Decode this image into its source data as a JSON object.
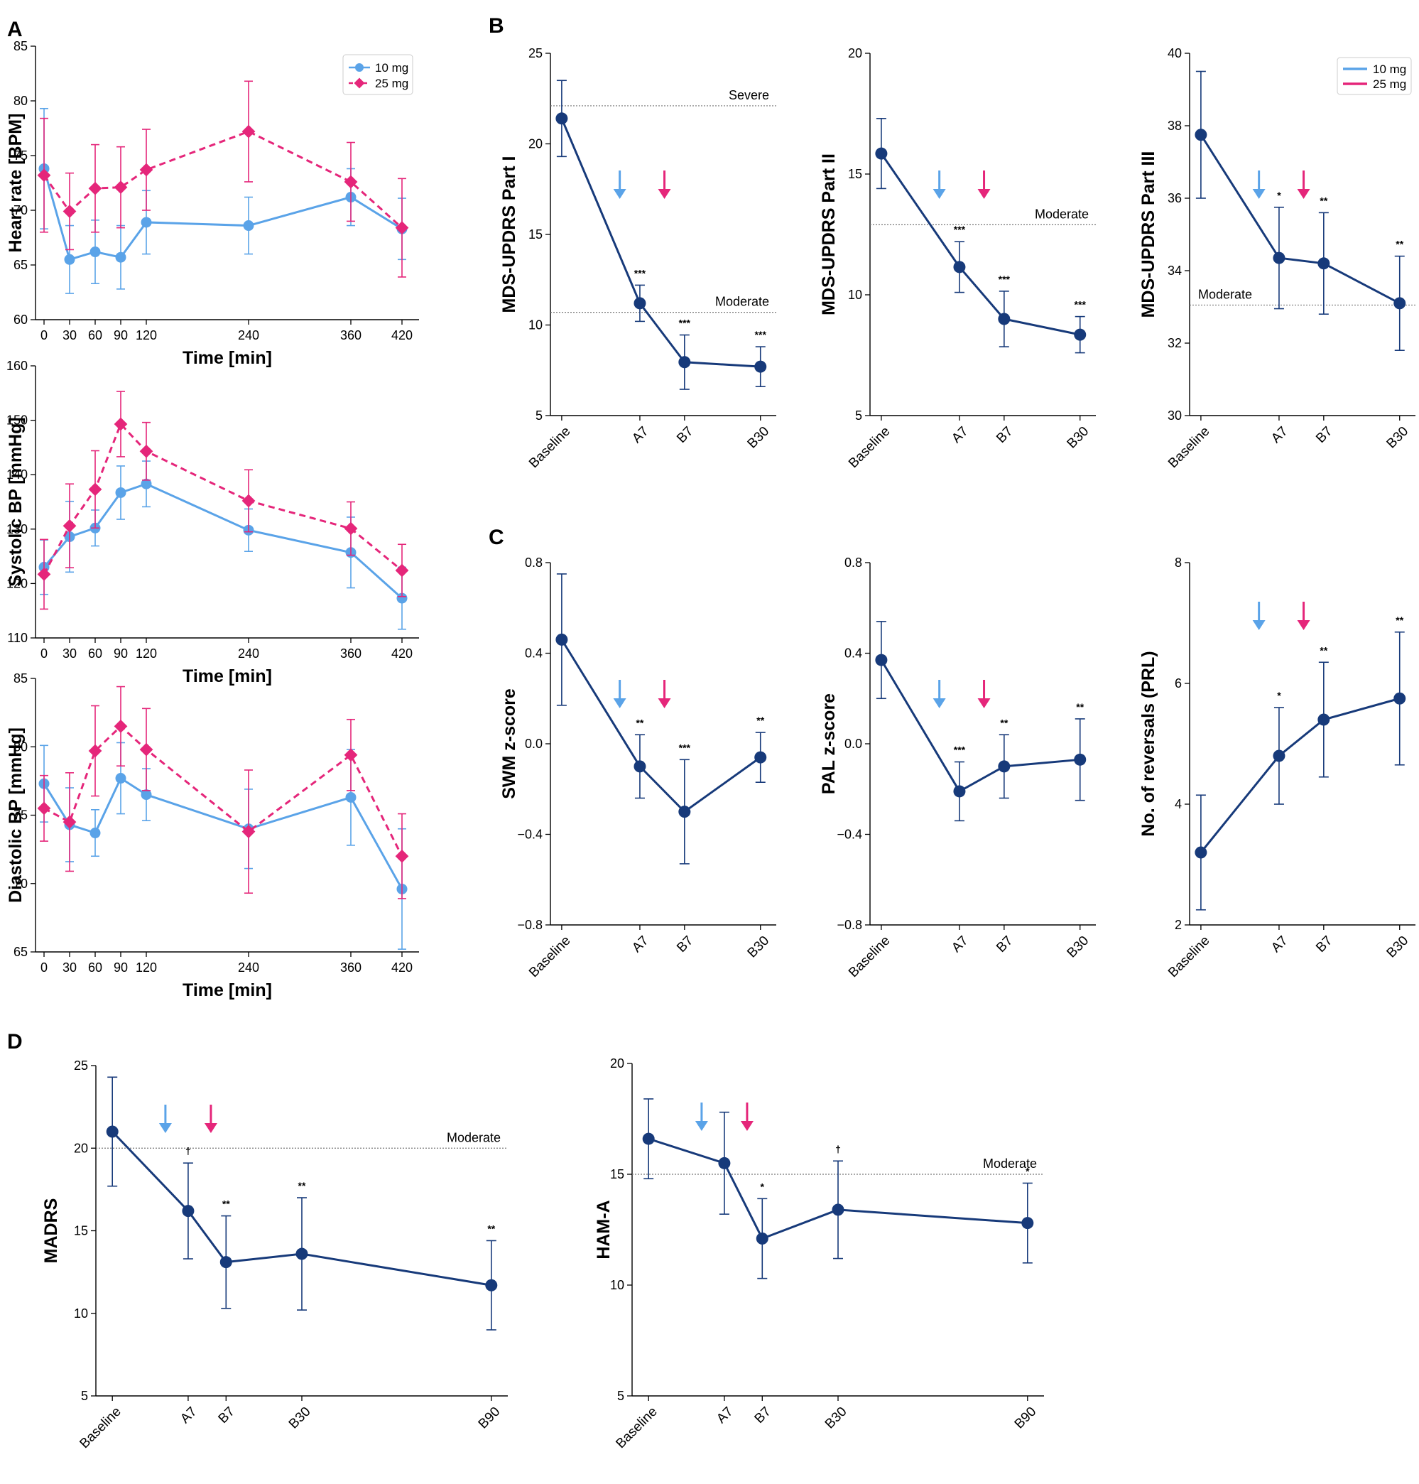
{
  "colors": {
    "navy": "#173a7a",
    "blue10": "#5aa3e8",
    "pink25": "#e5267a",
    "ref_line": "#777777"
  },
  "panel_letters": [
    "A",
    "B",
    "C",
    "D"
  ],
  "chart_data": [
    {
      "id": "hr",
      "panel": "A",
      "type": "line",
      "ylabel": "Heart rate [BPM]",
      "xlabel": "Time [min]",
      "ylim": [
        60,
        85
      ],
      "yticks": [
        60,
        65,
        70,
        75,
        80,
        85
      ],
      "x": [
        0,
        30,
        60,
        90,
        120,
        240,
        360,
        420
      ],
      "xlim": [
        -10,
        440
      ],
      "legend": {
        "position": "top-right",
        "style": "marker"
      },
      "series": [
        {
          "name": "10 mg",
          "color": "#5aa3e8",
          "marker": "circle",
          "dashed": false,
          "values": [
            73.8,
            65.5,
            66.2,
            65.7,
            68.9,
            68.6,
            71.2,
            68.3
          ],
          "errors": [
            5.5,
            3.1,
            2.9,
            2.9,
            2.9,
            2.6,
            2.6,
            2.8
          ]
        },
        {
          "name": "25 mg",
          "color": "#e5267a",
          "marker": "diamond",
          "dashed": true,
          "values": [
            73.2,
            69.9,
            72.0,
            72.1,
            73.7,
            77.2,
            72.6,
            68.4
          ],
          "errors": [
            5.2,
            3.5,
            4.0,
            3.7,
            3.7,
            4.6,
            3.6,
            4.5
          ]
        }
      ]
    },
    {
      "id": "sbp",
      "panel": "",
      "type": "line",
      "ylabel": "Systolic BP [mmHg]",
      "xlabel": "Time [min]",
      "ylim": [
        110,
        160
      ],
      "yticks": [
        110,
        120,
        130,
        140,
        150,
        160
      ],
      "x": [
        0,
        30,
        60,
        90,
        120,
        240,
        360,
        420
      ],
      "xlim": [
        -10,
        440
      ],
      "series": [
        {
          "name": "10 mg",
          "color": "#5aa3e8",
          "marker": "circle",
          "dashed": false,
          "values": [
            123.0,
            128.6,
            130.2,
            136.7,
            138.3,
            129.8,
            125.7,
            117.3
          ],
          "errors": [
            5.0,
            6.5,
            3.3,
            4.9,
            4.2,
            3.9,
            6.5,
            5.7
          ]
        },
        {
          "name": "25 mg",
          "color": "#e5267a",
          "marker": "diamond",
          "dashed": true,
          "values": [
            121.7,
            130.6,
            137.3,
            149.3,
            144.3,
            135.2,
            130.1,
            122.4
          ],
          "errors": [
            6.4,
            7.7,
            7.1,
            6.0,
            5.3,
            5.7,
            4.9,
            4.8
          ]
        }
      ]
    },
    {
      "id": "dbp",
      "panel": "",
      "type": "line",
      "ylabel": "Diastolic BP [mmHg]",
      "xlabel": "Time [min]",
      "ylim": [
        65,
        85
      ],
      "yticks": [
        65,
        70,
        75,
        80,
        85
      ],
      "x": [
        0,
        30,
        60,
        90,
        120,
        240,
        360,
        420
      ],
      "xlim": [
        -10,
        440
      ],
      "series": [
        {
          "name": "10 mg",
          "color": "#5aa3e8",
          "marker": "circle",
          "dashed": false,
          "values": [
            77.3,
            74.3,
            73.7,
            77.7,
            76.5,
            74.0,
            76.3,
            69.6
          ],
          "errors": [
            2.8,
            2.7,
            1.7,
            2.6,
            1.9,
            2.9,
            3.5,
            4.4
          ]
        },
        {
          "name": "25 mg",
          "color": "#e5267a",
          "marker": "diamond",
          "dashed": true,
          "values": [
            75.5,
            74.5,
            79.7,
            81.5,
            79.8,
            73.8,
            79.4,
            72.0
          ],
          "errors": [
            2.4,
            3.6,
            3.3,
            2.9,
            3.0,
            4.5,
            2.6,
            3.1
          ]
        }
      ]
    },
    {
      "id": "updrs1",
      "panel": "B",
      "type": "line",
      "ylabel": "MDS-UPDRS Part I",
      "ylim": [
        5,
        25
      ],
      "yticks": [
        5,
        10,
        15,
        20,
        25
      ],
      "categories": [
        "Baseline",
        "A7",
        "B7",
        "B30"
      ],
      "cat_pos": [
        0,
        1.75,
        2.75,
        4.45
      ],
      "values": [
        21.4,
        11.2,
        7.95,
        7.7
      ],
      "errors": [
        2.1,
        1.0,
        1.5,
        1.1
      ],
      "sig": [
        "",
        "***",
        "***",
        "***"
      ],
      "arrows": [
        1.3,
        2.3
      ],
      "ref_lines": [
        {
          "value": 22.1,
          "label": "Severe"
        },
        {
          "value": 10.7,
          "label": "Moderate"
        }
      ]
    },
    {
      "id": "updrs2",
      "panel": "",
      "type": "line",
      "ylabel": "MDS-UPDRS Part II",
      "ylim": [
        5,
        20
      ],
      "yticks": [
        5,
        10,
        15,
        20
      ],
      "categories": [
        "Baseline",
        "A7",
        "B7",
        "B30"
      ],
      "cat_pos": [
        0,
        1.75,
        2.75,
        4.45
      ],
      "values": [
        15.85,
        11.15,
        9.0,
        8.35
      ],
      "errors": [
        1.45,
        1.05,
        1.15,
        0.75
      ],
      "sig": [
        "",
        "***",
        "***",
        "***"
      ],
      "arrows": [
        1.3,
        2.3
      ],
      "ref_lines": [
        {
          "value": 12.9,
          "label": "Moderate"
        }
      ]
    },
    {
      "id": "updrs3",
      "panel": "",
      "type": "line",
      "ylabel": "MDS-UPDRS Part III",
      "ylim": [
        30,
        40
      ],
      "yticks": [
        30,
        32,
        34,
        36,
        38,
        40
      ],
      "categories": [
        "Baseline",
        "A7",
        "B7",
        "B30"
      ],
      "cat_pos": [
        0,
        1.75,
        2.75,
        4.45
      ],
      "values": [
        37.75,
        34.35,
        34.2,
        33.1
      ],
      "errors": [
        1.75,
        1.4,
        1.4,
        1.3
      ],
      "sig": [
        "",
        "*",
        "**",
        "**"
      ],
      "arrows": [
        1.3,
        2.3
      ],
      "ref_lines": [
        {
          "value": 33.05,
          "label": "Moderate"
        }
      ],
      "legend": {
        "position": "top-right",
        "style": "line"
      },
      "legend_items": [
        {
          "name": "10 mg",
          "color": "#5aa3e8"
        },
        {
          "name": "25 mg",
          "color": "#e5267a"
        }
      ]
    },
    {
      "id": "swm",
      "panel": "C",
      "type": "line",
      "ylabel": "SWM z-score",
      "ylim": [
        -0.8,
        0.8
      ],
      "yticks": [
        -0.8,
        -0.4,
        0.0,
        0.4,
        0.8
      ],
      "ytick_labels": [
        "−0.8",
        "−0.4",
        "0.0",
        "0.4",
        "0.8"
      ],
      "categories": [
        "Baseline",
        "A7",
        "B7",
        "B30"
      ],
      "cat_pos": [
        0,
        1.75,
        2.75,
        4.45
      ],
      "values": [
        0.46,
        -0.1,
        -0.3,
        -0.06
      ],
      "errors": [
        0.29,
        0.14,
        0.23,
        0.11
      ],
      "sig": [
        "",
        "**",
        "***",
        "**"
      ],
      "arrows": [
        1.3,
        2.3
      ]
    },
    {
      "id": "pal",
      "panel": "",
      "type": "line",
      "ylabel": "PAL z-score",
      "ylim": [
        -0.8,
        0.8
      ],
      "yticks": [
        -0.8,
        -0.4,
        0.0,
        0.4,
        0.8
      ],
      "ytick_labels": [
        "−0.8",
        "−0.4",
        "0.0",
        "0.4",
        "0.8"
      ],
      "categories": [
        "Baseline",
        "A7",
        "B7",
        "B30"
      ],
      "cat_pos": [
        0,
        1.75,
        2.75,
        4.45
      ],
      "values": [
        0.37,
        -0.21,
        -0.1,
        -0.07
      ],
      "errors": [
        0.17,
        0.13,
        0.14,
        0.18
      ],
      "sig": [
        "",
        "***",
        "**",
        "**"
      ],
      "arrows": [
        1.3,
        2.3
      ]
    },
    {
      "id": "prl",
      "panel": "",
      "type": "line",
      "ylabel": "No. of reversals (PRL)",
      "ylim": [
        2,
        8
      ],
      "yticks": [
        2,
        4,
        6,
        8
      ],
      "categories": [
        "Baseline",
        "A7",
        "B7",
        "B30"
      ],
      "cat_pos": [
        0,
        1.75,
        2.75,
        4.45
      ],
      "values": [
        3.2,
        4.8,
        5.4,
        5.75
      ],
      "errors": [
        0.95,
        0.8,
        0.95,
        1.1
      ],
      "sig": [
        "",
        "*",
        "**",
        "**"
      ],
      "arrows": [
        1.3,
        2.3
      ]
    },
    {
      "id": "madrs",
      "panel": "D",
      "type": "line",
      "ylabel": "MADRS",
      "ylim": [
        5,
        25
      ],
      "yticks": [
        5,
        10,
        15,
        20,
        25
      ],
      "categories": [
        "Baseline",
        "A7",
        "B7",
        "B30",
        "B90"
      ],
      "cat_pos": [
        0,
        2.0,
        3.0,
        5.0,
        10.0
      ],
      "values": [
        21.0,
        16.2,
        13.1,
        13.6,
        11.7
      ],
      "errors": [
        3.3,
        2.9,
        2.8,
        3.4,
        2.7
      ],
      "sig": [
        "",
        "†",
        "**",
        "**",
        "**"
      ],
      "arrows": [
        1.4,
        2.6
      ],
      "ref_lines": [
        {
          "value": 20.0,
          "label": "Moderate"
        }
      ]
    },
    {
      "id": "hama",
      "panel": "",
      "type": "line",
      "ylabel": "HAM-A",
      "ylim": [
        5,
        20
      ],
      "yticks": [
        5,
        10,
        15,
        20
      ],
      "categories": [
        "Baseline",
        "A7",
        "B7",
        "B30",
        "B90"
      ],
      "cat_pos": [
        0,
        2.0,
        3.0,
        5.0,
        10.0
      ],
      "values": [
        16.6,
        15.5,
        12.1,
        13.4,
        12.8
      ],
      "errors": [
        1.8,
        2.3,
        1.8,
        2.2,
        1.8
      ],
      "sig": [
        "",
        "",
        "*",
        "†",
        "*"
      ],
      "arrows": [
        1.4,
        2.6
      ],
      "ref_lines": [
        {
          "value": 15.0,
          "label": "Moderate"
        }
      ]
    }
  ]
}
